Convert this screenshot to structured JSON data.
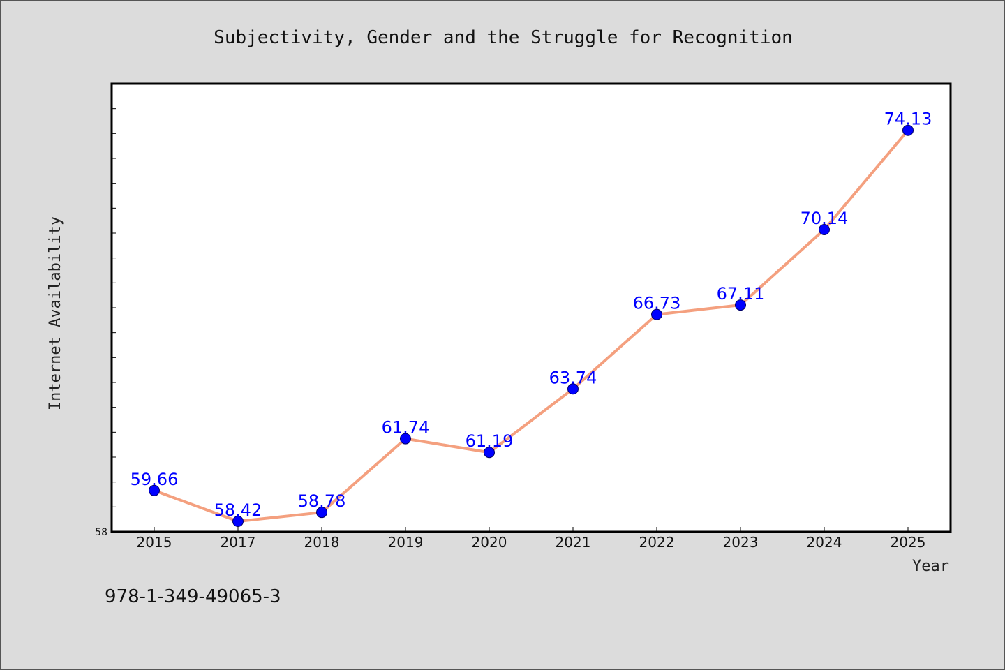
{
  "isbn_text": "978-1-349-49065-3",
  "colors": {
    "background": "#dcdcdc",
    "plot_background": "#ffffff",
    "line": "#f4a07f",
    "marker": "#0000ff",
    "data_label": "#0000ff"
  },
  "chart_data": {
    "type": "line",
    "title": "Subjectivity, Gender and the Struggle for Recognition",
    "xlabel": "Year",
    "ylabel": "Internet Availability",
    "categories": [
      "2015",
      "2017",
      "2018",
      "2019",
      "2020",
      "2021",
      "2022",
      "2023",
      "2024",
      "2025"
    ],
    "values": [
      59.66,
      58.42,
      58.78,
      61.74,
      61.19,
      63.74,
      66.73,
      67.11,
      70.14,
      74.13
    ],
    "data_labels": [
      "59.66",
      "58.42",
      "58.78",
      "61.74",
      "61.19",
      "63.74",
      "66.73",
      "67.11",
      "70.14",
      "74.13"
    ],
    "ylim": [
      58,
      76
    ],
    "y_tick_labels": [
      "58"
    ],
    "grid": false,
    "legend": "none"
  }
}
